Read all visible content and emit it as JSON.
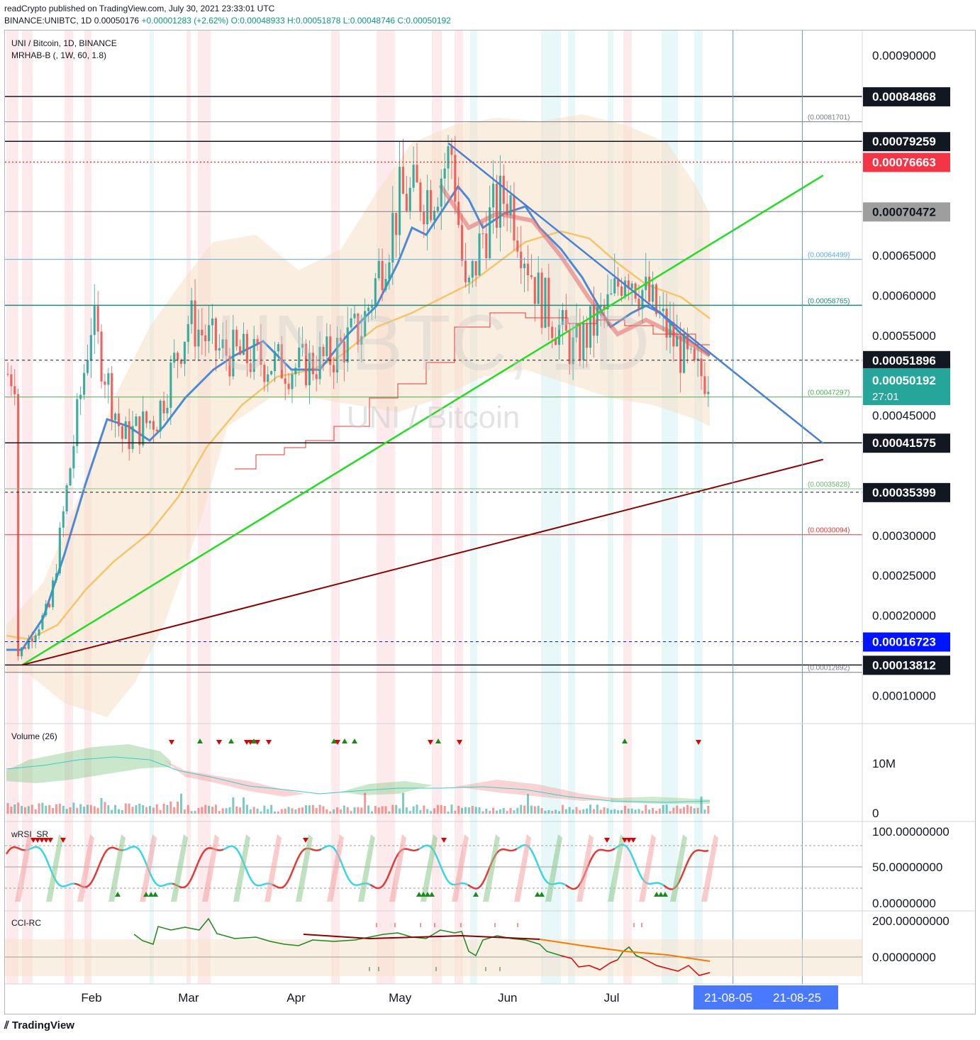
{
  "header": {
    "publish_line": "readCrypto published on TradingView.com, July 30, 2021 23:33:01 UTC",
    "symbol": "BINANCE:UNIBTC, 1D",
    "last": "0.00050176",
    "change": "+0.00001283 (+2.62%)",
    "ohlc": "O:0.00048933 H:0.00051878 L:0.00048746 C:0.00050192"
  },
  "main_pane": {
    "title": "UNI / Bitcoin, 1D, BINANCE",
    "indicator": "MRHAB-B (, 1W, 60, 1.8)",
    "watermark_symbol": "UNIBTC, 1D",
    "watermark_name": "UNI / Bitcoin",
    "axis_labels": [
      "0.00090000",
      "0.00065000",
      "0.00060000",
      "0.00055000",
      "0.00045000",
      "0.00030000",
      "0.00025000",
      "0.00020000",
      "0.00010000"
    ],
    "price_tags": [
      {
        "text": "0.00084868",
        "bg": "#131722",
        "fg": "#ffffff"
      },
      {
        "text": "0.00079259",
        "bg": "#131722",
        "fg": "#ffffff"
      },
      {
        "text": "0.00076663",
        "bg": "#f23645",
        "fg": "#ffffff"
      },
      {
        "text": "0.00070472",
        "bg": "#9e9e9e",
        "fg": "#131722"
      },
      {
        "text": "0.00051896",
        "bg": "#131722",
        "fg": "#ffffff"
      },
      {
        "text": "0.00041575",
        "bg": "#131722",
        "fg": "#ffffff"
      },
      {
        "text": "0.00035399",
        "bg": "#131722",
        "fg": "#ffffff"
      },
      {
        "text": "0.00016723",
        "bg": "#0014ff",
        "fg": "#ffffff"
      },
      {
        "text": "0.00013812",
        "bg": "#131722",
        "fg": "#ffffff"
      }
    ],
    "last_price_tag": {
      "price": "0.00050192",
      "countdown": "27:01",
      "bg": "#26a69a"
    },
    "fib_labels": [
      "(0.00081701)",
      "(0.00064499)",
      "(0.00058765)",
      "(0.00047297)",
      "(0.00035828)",
      "(0.00030094)",
      "(0.00012892)"
    ]
  },
  "volume_pane": {
    "title": "Volume (26)",
    "axis_labels": [
      "10M",
      "0"
    ]
  },
  "wrsi_pane": {
    "title": "wRSI_SR",
    "axis_labels": [
      "100.00000000",
      "50.00000000",
      "0.00000000"
    ]
  },
  "cci_pane": {
    "title": "CCI-RC",
    "axis_labels": [
      "200.00000000",
      "0.00000000"
    ]
  },
  "time_axis": {
    "labels": [
      "Feb",
      "Mar",
      "Apr",
      "May",
      "Jun",
      "Jul"
    ],
    "highlight_labels": [
      "21-08-05",
      "21-08-25"
    ]
  },
  "footer": {
    "logo": "TradingView"
  },
  "colors": {
    "up": "#26a69a",
    "down": "#ef5350",
    "green_trend": "#22dd22",
    "blue_trend": "#4a7fd4",
    "brown_trend": "#8b0000",
    "ema": "#f5c56a"
  },
  "chart_data": {
    "type": "candlestick",
    "symbol": "UNIBTC",
    "interval": "1D",
    "x": [
      "2021-01-10",
      "2021-01-20",
      "2021-02-01",
      "2021-02-10",
      "2021-02-20",
      "2021-03-01",
      "2021-03-10",
      "2021-03-20",
      "2021-04-01",
      "2021-04-10",
      "2021-04-20",
      "2021-05-01",
      "2021-05-10",
      "2021-05-16",
      "2021-05-20",
      "2021-05-25",
      "2021-06-01",
      "2021-06-10",
      "2021-06-20",
      "2021-07-01",
      "2021-07-05",
      "2021-07-15",
      "2021-07-25",
      "2021-07-30"
    ],
    "close": [
      0.000145,
      0.00021,
      0.00057,
      0.00042,
      0.00045,
      0.00057,
      0.00053,
      0.00052,
      0.00051,
      0.00052,
      0.00056,
      0.00072,
      0.00073,
      0.00078,
      0.00059,
      0.00068,
      0.00073,
      0.0006,
      0.00053,
      0.00059,
      0.00064,
      0.00057,
      0.0005,
      0.00050192
    ],
    "ylim": [
      7e-05,
      0.00094
    ],
    "horizontal_levels": [
      0.00084868,
      0.00081701,
      0.00079259,
      0.00076663,
      0.00070472,
      0.00064499,
      0.00058765,
      0.00051896,
      0.00047297,
      0.00041575,
      0.00035828,
      0.00035399,
      0.00030094,
      0.00016723,
      0.00013812,
      0.00012892
    ],
    "trendlines": [
      {
        "from": [
          "2021-01-12",
          0.000138
        ],
        "to": [
          "2021-08-31",
          0.00075
        ]
      },
      {
        "from": [
          "2021-05-15",
          0.00079
        ],
        "to": [
          "2021-08-31",
          0.000415
        ]
      },
      {
        "from": [
          "2021-01-12",
          0.000138
        ],
        "to": [
          "2021-08-31",
          0.000395
        ]
      }
    ],
    "vertical_lines": [
      "2021-08-05",
      "2021-08-25"
    ]
  }
}
